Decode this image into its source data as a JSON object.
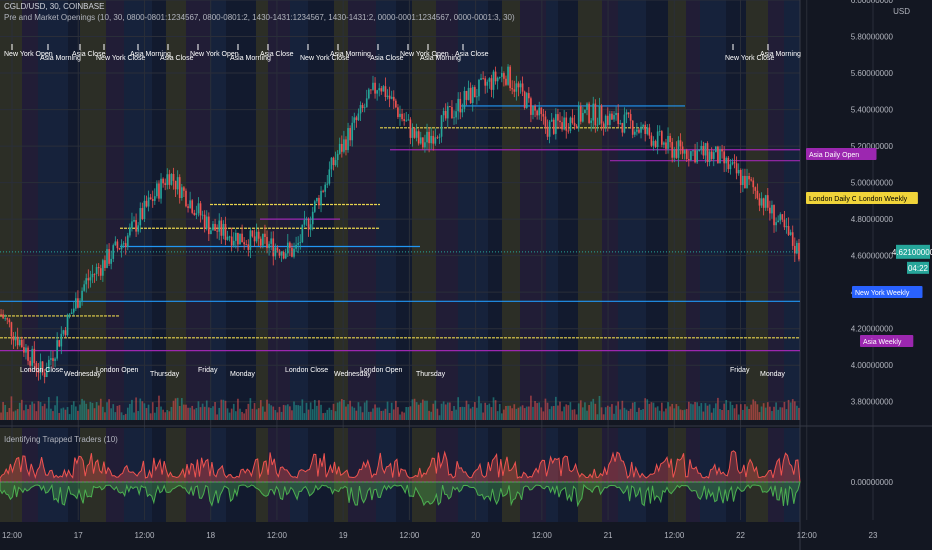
{
  "header": {
    "symbol_line": "CGLD/USD, 30, COINBASE",
    "indicator_line": "Pre and Market Openings (10, 30, 0800-0801:1234567, 0800-0801:2, 1430-1431:1234567, 1430-1431:2, 0000-0001:1234567, 0000-0001:3, 30)"
  },
  "price_axis": {
    "currency": "USD",
    "ticks": [
      "6.00000000",
      "5.80000000",
      "5.60000000",
      "5.40000000",
      "5.20000000",
      "5.00000000",
      "4.80000000",
      "4.60000000",
      "4.40000000",
      "4.20000000",
      "4.00000000",
      "3.80000000"
    ],
    "current_price": "4.62100000",
    "countdown": "04:22"
  },
  "oscillator": {
    "title": "Identifying Trapped Traders (10)",
    "zero_label": "0.00000000"
  },
  "time_axis": {
    "labels": [
      "12:00",
      "17",
      "12:00",
      "18",
      "12:00",
      "19",
      "12:00",
      "20",
      "12:00",
      "21",
      "12:00",
      "22",
      "12:00",
      "23"
    ]
  },
  "session_labels_top": [
    "New York Open",
    "Asia Morning",
    "Asia Close",
    "New York Close",
    "Asia Morning",
    "Asia Close"
  ],
  "session_labels_bottom": [
    "London Close",
    "Wednesday",
    "London Open",
    "Thursday",
    "Friday",
    "Monday"
  ],
  "level_tags": [
    {
      "text": "Asia Daily Open",
      "color": "#9c27b0"
    },
    {
      "text": "London Daily Open",
      "color": "#f0d43a"
    },
    {
      "text": "London Weekly",
      "color": "#f0d43a"
    },
    {
      "text": "New York Weekly",
      "color": "#2962ff"
    },
    {
      "text": "Asia Weekly",
      "color": "#9c27b0"
    }
  ],
  "colors": {
    "up": "#26a69a",
    "down": "#ef5350",
    "blue_level": "#2196f3",
    "yellow_level": "#e8d44d",
    "purple_level": "#9c27b0"
  },
  "chart_data": {
    "type": "candlestick",
    "symbol": "CGLD/USD",
    "interval": "30",
    "ylim": [
      3.7,
      6.0
    ],
    "x_labels": [
      "12:00",
      "17",
      "12:00",
      "18",
      "12:00",
      "19",
      "12:00",
      "20",
      "12:00",
      "21",
      "12:00",
      "22",
      "12:00",
      "23"
    ],
    "close_path_approx": [
      {
        "t": "16 12:00",
        "price": 4.28
      },
      {
        "t": "17",
        "price": 3.95
      },
      {
        "t": "17 06:00",
        "price": 4.45
      },
      {
        "t": "17 12:00",
        "price": 4.7
      },
      {
        "t": "17 18:00",
        "price": 5.05
      },
      {
        "t": "18",
        "price": 4.75
      },
      {
        "t": "18 12:00",
        "price": 4.68
      },
      {
        "t": "18 18:00",
        "price": 4.62
      },
      {
        "t": "19",
        "price": 5.15
      },
      {
        "t": "19 06:00",
        "price": 5.55
      },
      {
        "t": "19 12:00",
        "price": 5.2
      },
      {
        "t": "19 18:00",
        "price": 5.45
      },
      {
        "t": "20",
        "price": 5.6
      },
      {
        "t": "20 06:00",
        "price": 5.3
      },
      {
        "t": "20 12:00",
        "price": 5.38
      },
      {
        "t": "21",
        "price": 5.32
      },
      {
        "t": "21 12:00",
        "price": 5.18
      },
      {
        "t": "22",
        "price": 5.15
      },
      {
        "t": "22 06:00",
        "price": 4.95
      },
      {
        "t": "22 12:00",
        "price": 4.62
      }
    ],
    "levels": [
      {
        "price": 5.42,
        "color": "blue"
      },
      {
        "price": 5.3,
        "color": "yellow"
      },
      {
        "price": 5.18,
        "color": "purple"
      },
      {
        "price": 5.12,
        "color": "purple"
      },
      {
        "price": 4.88,
        "color": "yellow"
      },
      {
        "price": 4.8,
        "color": "purple"
      },
      {
        "price": 4.75,
        "color": "yellow"
      },
      {
        "price": 4.65,
        "color": "blue"
      },
      {
        "price": 4.35,
        "color": "blue"
      },
      {
        "price": 4.27,
        "color": "yellow"
      },
      {
        "price": 4.15,
        "color": "yellow"
      },
      {
        "price": 4.08,
        "color": "purple"
      }
    ]
  }
}
